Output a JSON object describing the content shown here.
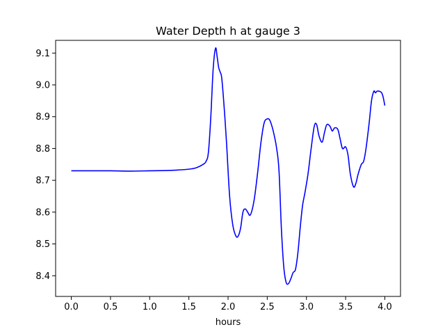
{
  "chart_data": {
    "type": "line",
    "title": "Water Depth h at gauge 3",
    "xlabel": "hours",
    "ylabel": "",
    "xlim": [
      -0.2,
      4.2
    ],
    "ylim": [
      8.335,
      9.14
    ],
    "grid": false,
    "x_ticks": [
      0.0,
      0.5,
      1.0,
      1.5,
      2.0,
      2.5,
      3.0,
      3.5,
      4.0
    ],
    "x_tick_labels": [
      "0.0",
      "0.5",
      "1.0",
      "1.5",
      "2.0",
      "2.5",
      "3.0",
      "3.5",
      "4.0"
    ],
    "y_ticks": [
      8.4,
      8.5,
      8.6,
      8.7,
      8.8,
      8.9,
      9.0,
      9.1
    ],
    "y_tick_labels": [
      "8.4",
      "8.5",
      "8.6",
      "8.7",
      "8.8",
      "8.9",
      "9.0",
      "9.1"
    ],
    "series": [
      {
        "name": "",
        "color": "#0000ff",
        "x": [
          0.0,
          0.25,
          0.5,
          0.75,
          1.0,
          1.25,
          1.5,
          1.6,
          1.68,
          1.72,
          1.75,
          1.78,
          1.81,
          1.84,
          1.86,
          1.88,
          1.9,
          1.92,
          1.95,
          1.98,
          2.02,
          2.06,
          2.1,
          2.13,
          2.16,
          2.19,
          2.22,
          2.25,
          2.28,
          2.31,
          2.34,
          2.38,
          2.42,
          2.46,
          2.5,
          2.53,
          2.56,
          2.59,
          2.62,
          2.65,
          2.68,
          2.71,
          2.74,
          2.77,
          2.8,
          2.83,
          2.86,
          2.89,
          2.92,
          2.95,
          2.98,
          3.02,
          3.06,
          3.1,
          3.13,
          3.16,
          3.2,
          3.23,
          3.26,
          3.3,
          3.33,
          3.36,
          3.4,
          3.43,
          3.46,
          3.5,
          3.53,
          3.56,
          3.6,
          3.63,
          3.66,
          3.7,
          3.73,
          3.76,
          3.8,
          3.83,
          3.86,
          3.88,
          3.9,
          3.93,
          3.96,
          3.98,
          4.0
        ],
        "y": [
          8.73,
          8.73,
          8.73,
          8.729,
          8.73,
          8.731,
          8.735,
          8.74,
          8.75,
          8.76,
          8.79,
          8.9,
          9.05,
          9.115,
          9.09,
          9.055,
          9.04,
          9.02,
          8.93,
          8.82,
          8.65,
          8.56,
          8.525,
          8.525,
          8.55,
          8.6,
          8.61,
          8.6,
          8.59,
          8.61,
          8.65,
          8.73,
          8.82,
          8.88,
          8.893,
          8.89,
          8.87,
          8.84,
          8.8,
          8.73,
          8.55,
          8.43,
          8.38,
          8.375,
          8.39,
          8.41,
          8.42,
          8.47,
          8.55,
          8.62,
          8.66,
          8.72,
          8.8,
          8.87,
          8.875,
          8.84,
          8.82,
          8.85,
          8.875,
          8.87,
          8.855,
          8.865,
          8.86,
          8.83,
          8.8,
          8.805,
          8.78,
          8.72,
          8.68,
          8.69,
          8.72,
          8.75,
          8.76,
          8.8,
          8.88,
          8.95,
          8.98,
          8.975,
          8.98,
          8.98,
          8.975,
          8.96,
          8.935
        ]
      }
    ]
  }
}
